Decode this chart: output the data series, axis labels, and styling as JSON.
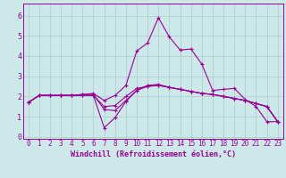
{
  "xlabel": "Windchill (Refroidissement éolien,°C)",
  "background_color": "#cce8e8",
  "grid_color": "#aacccc",
  "line_color": "#990099",
  "xlim": [
    -0.5,
    23.5
  ],
  "ylim": [
    -0.1,
    6.6
  ],
  "xticks": [
    0,
    1,
    2,
    3,
    4,
    5,
    6,
    7,
    8,
    9,
    10,
    11,
    12,
    13,
    14,
    15,
    16,
    17,
    18,
    19,
    20,
    21,
    22,
    23
  ],
  "yticks": [
    0,
    1,
    2,
    3,
    4,
    5,
    6
  ],
  "curves": [
    {
      "x": [
        0,
        1,
        2,
        3,
        4,
        5,
        6,
        7,
        8,
        9,
        10,
        11,
        12,
        13,
        14,
        15,
        16,
        17,
        18,
        19,
        20,
        21,
        22,
        23
      ],
      "y": [
        1.7,
        2.05,
        2.05,
        2.05,
        2.05,
        2.1,
        2.15,
        1.8,
        2.05,
        2.55,
        4.25,
        4.65,
        5.9,
        4.95,
        4.3,
        4.35,
        3.6,
        2.3,
        2.35,
        2.4,
        1.85,
        1.5,
        0.75,
        0.75
      ]
    },
    {
      "x": [
        0,
        1,
        2,
        3,
        4,
        5,
        6,
        7,
        8,
        9,
        10,
        11,
        12,
        13,
        14,
        15,
        16,
        17,
        18,
        19,
        20,
        21,
        22,
        23
      ],
      "y": [
        1.7,
        2.05,
        2.05,
        2.05,
        2.05,
        2.05,
        2.05,
        1.5,
        1.55,
        2.0,
        2.4,
        2.5,
        2.55,
        2.45,
        2.35,
        2.25,
        2.15,
        2.1,
        2.0,
        1.9,
        1.8,
        1.65,
        1.5,
        0.75
      ]
    },
    {
      "x": [
        0,
        1,
        2,
        3,
        4,
        5,
        6,
        7,
        8,
        9,
        10,
        11,
        12,
        13,
        14,
        15,
        16,
        17,
        18,
        19,
        20,
        21,
        22,
        23
      ],
      "y": [
        1.7,
        2.05,
        2.05,
        2.05,
        2.05,
        2.1,
        2.1,
        1.35,
        1.3,
        1.8,
        2.3,
        2.55,
        2.6,
        2.45,
        2.35,
        2.25,
        2.15,
        2.1,
        2.0,
        1.9,
        1.8,
        1.65,
        1.5,
        0.75
      ]
    },
    {
      "x": [
        0,
        1,
        2,
        3,
        4,
        5,
        6,
        7,
        8,
        9,
        10,
        11,
        12,
        13,
        14,
        15,
        16,
        17,
        18,
        19,
        20,
        21,
        22,
        23
      ],
      "y": [
        1.7,
        2.05,
        2.05,
        2.05,
        2.05,
        2.05,
        2.05,
        0.45,
        0.95,
        1.75,
        2.3,
        2.5,
        2.55,
        2.45,
        2.35,
        2.25,
        2.15,
        2.1,
        2.0,
        1.9,
        1.8,
        1.65,
        1.5,
        0.75
      ]
    }
  ],
  "tick_fontsize": 5.5,
  "xlabel_fontsize": 6.0
}
